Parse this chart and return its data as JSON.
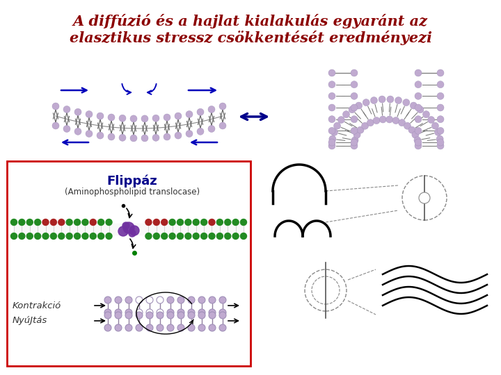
{
  "title_line1": "A diffúzió és a hajlat kialakulás egyaránt az",
  "title_line2": "elasztikus stressz csökkentését eredményezi",
  "title_color": "#8B0000",
  "title_fontsize": 15,
  "flippaz_title": "Flippáz",
  "flippaz_subtitle": "(Aminophospholipid translocase)",
  "flippaz_title_color": "#00008B",
  "flippaz_subtitle_color": "#333333",
  "kontrakci_text": "Kontrakció",
  "nyujtas_text": "NyúJtás",
  "label_color": "#333333",
  "box_edge_color": "#cc0000",
  "background_color": "#ffffff",
  "lipid_color": "#c0aad0",
  "lipid_color_dark": "#a090b8",
  "arrow_color": "#0000bb",
  "double_arrow_color": "#00008B"
}
